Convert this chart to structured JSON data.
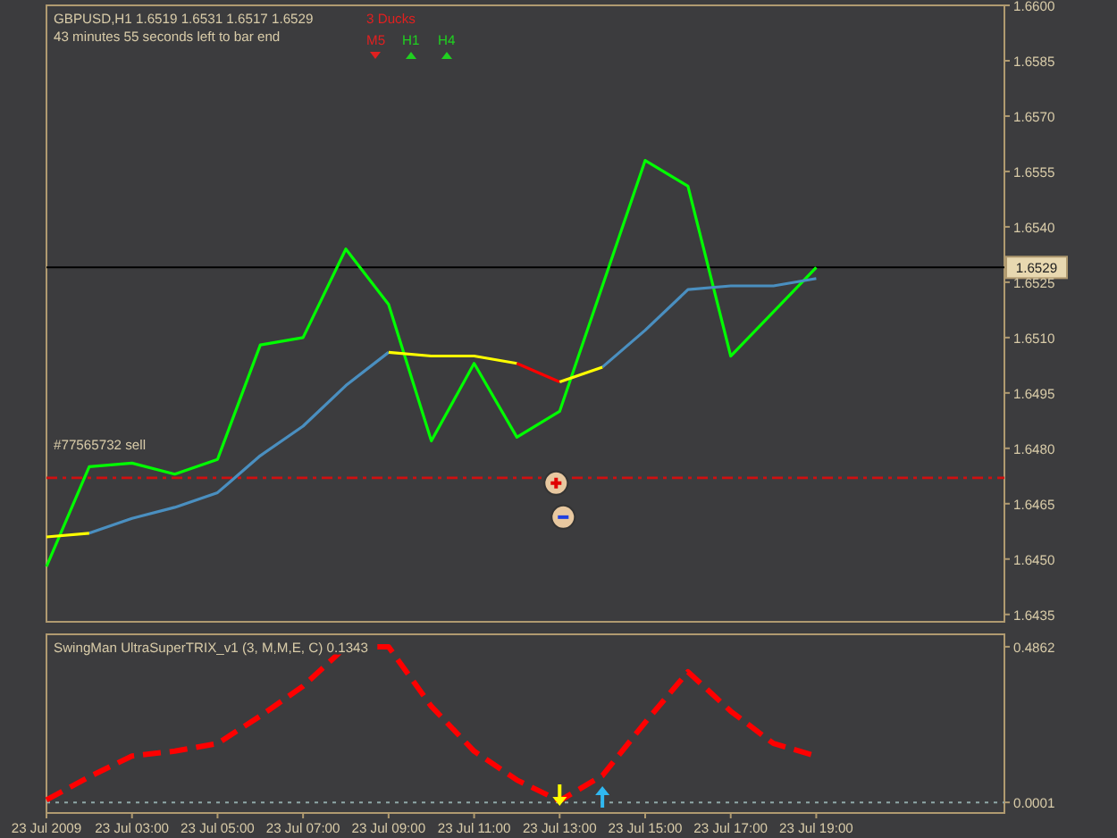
{
  "chart_data": [
    {
      "type": "line",
      "title": "GBPUSD,H1 1.6519 1.6531 1.6517 1.6529",
      "subtitle": "43 minutes 55 seconds left to bar end",
      "annotations": [
        "3 Ducks",
        "M5",
        "H1",
        "H4"
      ],
      "xlim": [
        "2009-07-23T01:00",
        "2009-07-23T23:24"
      ],
      "ylim": [
        1.6433,
        1.66
      ],
      "yticks": [
        {
          "value": 1.66,
          "label": "1.6600"
        },
        1.6585,
        {
          "value": 1.657,
          "label": "1.6570"
        },
        1.6555,
        {
          "value": 1.654,
          "label": "1.6540"
        },
        1.6525,
        {
          "value": 1.651,
          "label": "1.6510"
        },
        1.6495,
        {
          "value": 1.648,
          "label": "1.6480"
        },
        1.6465,
        {
          "value": 1.645,
          "label": "1.6450"
        },
        1.6435
      ],
      "tick_labels": "y",
      "grid": false,
      "ref_lines": [
        {
          "axis": "y",
          "value": 1.6529,
          "label": "1.6529",
          "color": "#000000",
          "line_style": "solid"
        },
        {
          "axis": "y",
          "value": 1.6472,
          "label": "#77565732 sell",
          "color": "#d01010",
          "line_style": "dashed"
        }
      ],
      "series": [
        {
          "color": "#00ff00",
          "x": [
            "2009-07-23T01:00",
            "2009-07-23T02:00",
            "2009-07-23T03:00",
            "2009-07-23T04:00",
            "2009-07-23T05:00",
            "2009-07-23T06:00",
            "2009-07-23T07:00",
            "2009-07-23T08:00",
            "2009-07-23T09:00",
            "2009-07-23T10:00",
            "2009-07-23T11:00",
            "2009-07-23T12:00",
            "2009-07-23T13:00",
            "2009-07-23T15:00",
            "2009-07-23T16:00",
            "2009-07-23T17:00",
            "2009-07-23T19:00"
          ],
          "values": [
            1.6448,
            1.6475,
            1.6476,
            1.6473,
            1.6477,
            1.6508,
            1.651,
            1.6534,
            1.6519,
            1.6482,
            1.6503,
            1.6483,
            1.649,
            1.6558,
            1.6551,
            1.6505,
            1.6529
          ]
        },
        {
          "color": "#4a8fc0",
          "x": [
            "2009-07-23T02:00",
            "2009-07-23T03:00",
            "2009-07-23T04:00",
            "2009-07-23T05:00",
            "2009-07-23T06:00",
            "2009-07-23T07:00",
            "2009-07-23T08:00",
            "2009-07-23T09:00"
          ],
          "values": [
            1.6457,
            1.6461,
            1.6464,
            1.6468,
            1.6478,
            1.6486,
            1.6497,
            1.6506
          ]
        },
        {
          "color": "#4a8fc0",
          "x": [
            "2009-07-23T14:00",
            "2009-07-23T15:00",
            "2009-07-23T16:00",
            "2009-07-23T17:00",
            "2009-07-23T18:00",
            "2009-07-23T19:00"
          ],
          "values": [
            1.6502,
            1.6512,
            1.6523,
            1.6524,
            1.6524,
            1.6526
          ]
        },
        {
          "color": "#ffff00",
          "x": [
            "2009-07-23T01:00",
            "2009-07-23T02:00"
          ],
          "values": [
            1.6456,
            1.6457
          ]
        },
        {
          "color": "#ffff00",
          "x": [
            "2009-07-23T09:00",
            "2009-07-23T10:00",
            "2009-07-23T11:00",
            "2009-07-23T12:00"
          ],
          "values": [
            1.6506,
            1.6505,
            1.6505,
            1.6503
          ]
        },
        {
          "color": "#ff0000",
          "x": [
            "2009-07-23T12:00",
            "2009-07-23T13:00"
          ],
          "values": [
            1.6503,
            1.6498
          ]
        },
        {
          "color": "#ffff00",
          "x": [
            "2009-07-23T13:00",
            "2009-07-23T14:00"
          ],
          "values": [
            1.6498,
            1.6502
          ]
        }
      ]
    },
    {
      "type": "line",
      "title": "SwingMan UltraSuperTRIX_v1 (3, M,M,E, C) 0.1343",
      "line_style": "dashed",
      "x": [
        "2009-07-23T01:00",
        "2009-07-23T02:00",
        "2009-07-23T03:00",
        "2009-07-23T04:00",
        "2009-07-23T05:00",
        "2009-07-23T06:00",
        "2009-07-23T07:00",
        "2009-07-23T08:00",
        "2009-07-23T09:00",
        "2009-07-23T10:00",
        "2009-07-23T11:00",
        "2009-07-23T12:00",
        "2009-07-23T13:00",
        "2009-07-23T14:00",
        "2009-07-23T15:00",
        "2009-07-23T16:00",
        "2009-07-23T17:00",
        "2009-07-23T18:00",
        "2009-07-23T19:00"
      ],
      "xlim": [
        "2009-07-23T01:00",
        "2009-07-23T23:24"
      ],
      "ylim": [
        -0.033,
        0.525
      ],
      "xticks": [
        {
          "value": "2009-07-23T01:00",
          "label": "23 Jul 2009"
        },
        {
          "value": "2009-07-23T03:00",
          "label": "23 Jul 03:00"
        },
        {
          "value": "2009-07-23T05:00",
          "label": "23 Jul 05:00"
        },
        {
          "value": "2009-07-23T07:00",
          "label": "23 Jul 07:00"
        },
        {
          "value": "2009-07-23T09:00",
          "label": "23 Jul 09:00"
        },
        {
          "value": "2009-07-23T11:00",
          "label": "23 Jul 11:00"
        },
        {
          "value": "2009-07-23T13:00",
          "label": "23 Jul 13:00"
        },
        {
          "value": "2009-07-23T15:00",
          "label": "23 Jul 15:00"
        },
        {
          "value": "2009-07-23T17:00",
          "label": "23 Jul 17:00"
        },
        {
          "value": "2009-07-23T19:00",
          "label": "23 Jul 19:00"
        }
      ],
      "yticks": [
        0.4862,
        0.0001
      ],
      "grid": false,
      "ref_lines": [
        {
          "axis": "y",
          "value": 0.0001,
          "color": "#8fa8a8",
          "line_style": "dotted"
        }
      ],
      "series": [
        {
          "color": "#ff0000",
          "values": [
            0.008,
            0.08,
            0.145,
            0.16,
            0.184,
            0.27,
            0.363,
            0.486,
            0.486,
            0.3,
            0.16,
            0.07,
            0.005,
            0.084,
            0.25,
            0.408,
            0.285,
            0.184,
            0.145
          ]
        }
      ]
    }
  ]
}
